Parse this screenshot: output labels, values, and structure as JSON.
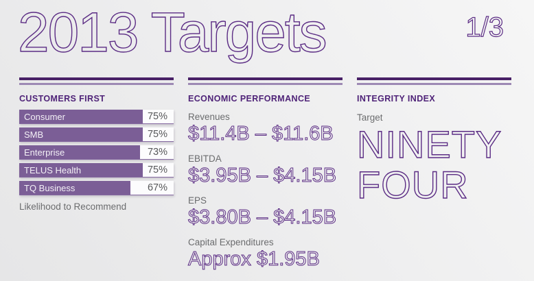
{
  "page": {
    "title": "2013 Targets",
    "page_indicator": "1/3"
  },
  "colors": {
    "accent_purple": "#5b2c84",
    "bar_purple": "#7b5e96",
    "rule_dark": "#482066",
    "rule_light": "#9d89b4",
    "heading_purple": "#4f2378",
    "text_gray": "#6b6c6e",
    "percent_gray": "#57585a",
    "background": "#ededee"
  },
  "sections": {
    "customers_first": {
      "heading": "CUSTOMERS FIRST",
      "caption": "Likelihood to Recommend"
    },
    "economic_performance": {
      "heading": "ECONOMIC PERFORMANCE",
      "metrics": [
        {
          "label": "Revenues",
          "value": "$11.4B – $11.6B"
        },
        {
          "label": "EBITDA",
          "value": "$3.95B – $4.15B"
        },
        {
          "label": "EPS",
          "value": "$3.80B – $4.15B"
        },
        {
          "label": "Capital Expenditures",
          "value": "Approx $1.95B"
        }
      ]
    },
    "integrity_index": {
      "heading": "INTEGRITY INDEX",
      "label": "Target",
      "value_lines": [
        "NINETY",
        "FOUR"
      ]
    }
  },
  "chart_data": {
    "type": "bar",
    "orientation": "horizontal",
    "title": "CUSTOMERS FIRST",
    "caption": "Likelihood to Recommend",
    "categories": [
      "Consumer",
      "SMB",
      "Enterprise",
      "TELUS Health",
      "TQ Business"
    ],
    "values": [
      75,
      75,
      73,
      75,
      67
    ],
    "unit": "%",
    "xlim": [
      0,
      100
    ],
    "grid": false,
    "legend": false,
    "value_labels_position": "right-of-bar"
  }
}
